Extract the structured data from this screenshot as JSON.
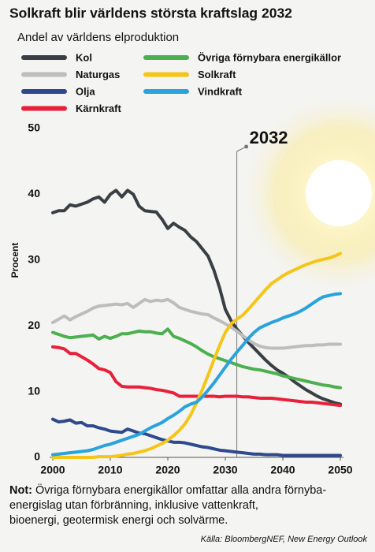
{
  "chart_data": {
    "type": "line",
    "title": "Solkraft blir världens största kraftslag 2032",
    "subtitle": "Andel av världens elproduktion",
    "ylabel": "Procent",
    "x": [
      2000,
      2001,
      2002,
      2003,
      2004,
      2005,
      2006,
      2007,
      2008,
      2009,
      2010,
      2011,
      2012,
      2013,
      2014,
      2015,
      2016,
      2017,
      2018,
      2019,
      2020,
      2021,
      2022,
      2023,
      2024,
      2025,
      2026,
      2027,
      2028,
      2029,
      2030,
      2031,
      2032,
      2033,
      2034,
      2035,
      2036,
      2037,
      2038,
      2039,
      2040,
      2041,
      2042,
      2043,
      2044,
      2045,
      2046,
      2047,
      2048,
      2049,
      2050
    ],
    "xlim": [
      2000,
      2050
    ],
    "xticks": [
      2000,
      2010,
      2020,
      2030,
      2040,
      2050
    ],
    "ylim": [
      0,
      50
    ],
    "yticks": [
      0,
      10,
      20,
      30,
      40,
      50
    ],
    "grid": false,
    "series": [
      {
        "name": "Kol",
        "color": "#3a3f45",
        "values": [
          37.2,
          37.5,
          37.5,
          38.4,
          38.2,
          38.5,
          38.8,
          39.3,
          39.6,
          38.8,
          40.0,
          40.6,
          39.6,
          40.6,
          40.0,
          38.2,
          37.5,
          37.4,
          37.3,
          36.2,
          34.8,
          35.6,
          35.0,
          34.5,
          33.5,
          32.8,
          31.7,
          30.6,
          28.5,
          25.8,
          22.5,
          20.8,
          19.5,
          18.5,
          17.5,
          16.6,
          15.7,
          14.8,
          14.0,
          13.3,
          12.8,
          12.2,
          11.5,
          10.9,
          10.3,
          9.8,
          9.3,
          8.9,
          8.6,
          8.3,
          8.1
        ]
      },
      {
        "name": "Naturgas",
        "color": "#bdbdbd",
        "values": [
          20.5,
          21.0,
          21.5,
          20.9,
          21.4,
          21.8,
          22.2,
          22.7,
          23.0,
          23.1,
          23.2,
          23.3,
          23.2,
          23.4,
          22.8,
          23.4,
          24.0,
          23.7,
          23.9,
          23.8,
          24.0,
          23.5,
          22.8,
          22.5,
          22.2,
          22.0,
          21.8,
          21.7,
          21.2,
          20.8,
          20.3,
          19.8,
          19.2,
          18.5,
          17.9,
          17.3,
          16.9,
          16.7,
          16.6,
          16.6,
          16.6,
          16.7,
          16.8,
          16.9,
          17.0,
          17.0,
          17.1,
          17.1,
          17.2,
          17.2,
          17.2
        ]
      },
      {
        "name": "Olja",
        "color": "#2e4a8c",
        "values": [
          5.8,
          5.4,
          5.5,
          5.7,
          5.2,
          5.3,
          4.8,
          4.8,
          4.5,
          4.3,
          4.0,
          3.9,
          3.8,
          4.3,
          4.0,
          3.7,
          3.6,
          3.3,
          3.0,
          2.7,
          2.5,
          2.3,
          2.3,
          2.2,
          2.0,
          1.8,
          1.6,
          1.5,
          1.3,
          1.1,
          1.0,
          0.9,
          0.8,
          0.7,
          0.6,
          0.5,
          0.5,
          0.4,
          0.4,
          0.4,
          0.3,
          0.3,
          0.3,
          0.3,
          0.3,
          0.3,
          0.3,
          0.3,
          0.3,
          0.3,
          0.3
        ]
      },
      {
        "name": "Kärnkraft",
        "color": "#e8203a",
        "values": [
          16.8,
          16.7,
          16.5,
          15.8,
          15.8,
          15.3,
          14.8,
          14.2,
          13.5,
          13.3,
          12.9,
          11.5,
          10.8,
          10.7,
          10.7,
          10.7,
          10.6,
          10.5,
          10.3,
          10.2,
          10.0,
          9.8,
          9.3,
          9.3,
          9.3,
          9.3,
          9.3,
          9.3,
          9.3,
          9.2,
          9.3,
          9.3,
          9.3,
          9.2,
          9.2,
          9.1,
          9.0,
          9.0,
          9.0,
          8.9,
          8.8,
          8.7,
          8.6,
          8.5,
          8.4,
          8.4,
          8.3,
          8.2,
          8.1,
          8.0,
          7.9
        ]
      },
      {
        "name": "Övriga förnybara energikällor",
        "color": "#4caf50",
        "values": [
          19.0,
          18.7,
          18.4,
          18.2,
          18.3,
          18.4,
          18.5,
          18.6,
          18.0,
          18.4,
          18.1,
          18.4,
          18.8,
          18.8,
          19.0,
          19.2,
          19.1,
          19.1,
          18.9,
          18.8,
          19.5,
          18.4,
          18.1,
          17.7,
          17.3,
          16.8,
          16.2,
          15.7,
          15.3,
          15.0,
          14.7,
          14.4,
          14.1,
          13.8,
          13.6,
          13.4,
          13.3,
          13.1,
          12.9,
          12.7,
          12.4,
          12.2,
          12.0,
          11.8,
          11.6,
          11.4,
          11.2,
          11.0,
          10.9,
          10.7,
          10.6
        ]
      },
      {
        "name": "Solkraft",
        "color": "#f5c518",
        "values": [
          0.0,
          0.0,
          0.0,
          0.0,
          0.0,
          0.0,
          0.0,
          0.0,
          0.1,
          0.1,
          0.1,
          0.2,
          0.3,
          0.5,
          0.6,
          0.8,
          1.0,
          1.3,
          1.7,
          2.1,
          2.6,
          3.3,
          4.1,
          5.1,
          6.5,
          8.3,
          10.3,
          12.5,
          14.8,
          17.0,
          19.0,
          20.3,
          21.0,
          21.6,
          22.5,
          23.5,
          24.5,
          25.5,
          26.4,
          27.0,
          27.6,
          28.1,
          28.5,
          28.9,
          29.3,
          29.6,
          29.9,
          30.1,
          30.3,
          30.6,
          31.0
        ]
      },
      {
        "name": "Vindkraft",
        "color": "#29a3dc",
        "values": [
          0.4,
          0.5,
          0.6,
          0.7,
          0.8,
          0.9,
          1.0,
          1.2,
          1.5,
          1.8,
          2.0,
          2.3,
          2.6,
          2.9,
          3.2,
          3.5,
          4.0,
          4.5,
          4.9,
          5.3,
          5.9,
          6.4,
          7.0,
          7.7,
          8.1,
          8.4,
          9.2,
          10.2,
          11.3,
          12.5,
          13.7,
          14.9,
          16.0,
          17.0,
          18.1,
          19.0,
          19.7,
          20.1,
          20.5,
          20.8,
          21.2,
          21.5,
          21.8,
          22.2,
          22.7,
          23.3,
          23.9,
          24.4,
          24.6,
          24.8,
          24.9
        ]
      }
    ],
    "annotation": {
      "x": 2032
    },
    "note_label": "Not:",
    "note": [
      "Övriga förnybara energikällor omfattar alla andra förnyba-",
      "energislag utan förbränning, inklusive vattenkraft,",
      "bioenergi, geotermisk energi och solvärme."
    ],
    "source": "Källa: BloombergNEF, New Energy Outlook"
  }
}
